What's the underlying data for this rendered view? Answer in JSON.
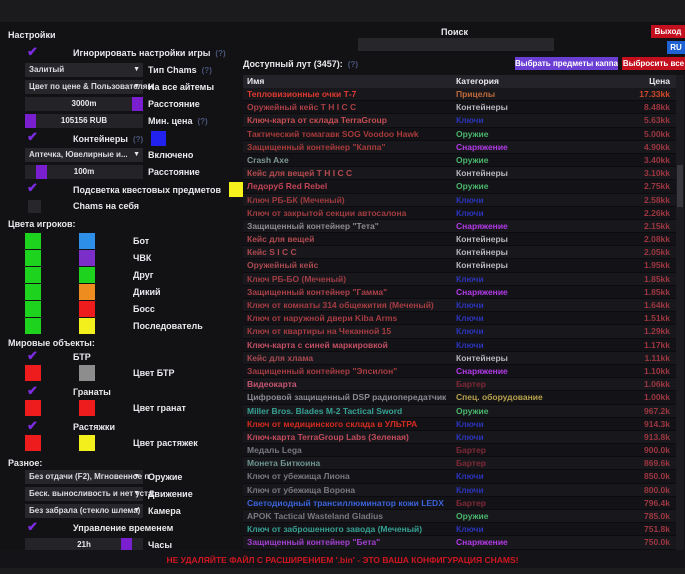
{
  "topbar": {
    "search_label": "Поиск",
    "search_value": "",
    "exit_label": "Выход",
    "language_label": "RU"
  },
  "settings_panel": {
    "title": "Настройки",
    "accent_color": "#7a1fd0",
    "ignore_game_settings": {
      "label": "Игнорировать настройки игры",
      "help": "(?)",
      "checked": true
    },
    "chams_type": {
      "value": "Залитый",
      "label": "Тип Chams",
      "help": "(?)"
    },
    "items_mode": {
      "value": "Цвет по цене & Пользователям",
      "label": "На все айтемы"
    },
    "items_distance": {
      "value": "3000m",
      "label": "Расстояние",
      "fraction": 1
    },
    "min_price": {
      "value": "105156 RUB",
      "label": "Мин. цена",
      "help": "(?)",
      "fraction": 0
    },
    "containers": {
      "label": "Контейнеры",
      "help": "(?)",
      "checked": true,
      "color": "#2222ee"
    },
    "containers_filter": {
      "value": "Аптечка, Ювелирные и...",
      "label": "Включено"
    },
    "containers_distance": {
      "value": "100m",
      "label": "Расстояние",
      "fraction": 0.1
    },
    "quest_items": {
      "label": "Подсветка квестовых предметов",
      "checked": true,
      "color": "#f6f11c"
    },
    "chams_self": {
      "label": "Chams на себя",
      "checked": false
    },
    "player_colors": {
      "title": "Цвета игроков:",
      "rows": [
        {
          "label": "Бот",
          "visible_color": "#1ed31e",
          "target_color": "#2d8fe8"
        },
        {
          "label": "ЧВК",
          "visible_color": "#1ed31e",
          "target_color": "#7b2fc8"
        },
        {
          "label": "Друг",
          "visible_color": "#1ed31e",
          "target_color": "#1ed31e"
        },
        {
          "label": "Дикий",
          "visible_color": "#1ed31e",
          "target_color": "#ef8c1f"
        },
        {
          "label": "Босс",
          "visible_color": "#1ed31e",
          "target_color": "#ee1c1c"
        },
        {
          "label": "Последователь",
          "visible_color": "#1ed31e",
          "target_color": "#f2ef1d"
        }
      ]
    },
    "world_objects": {
      "title": "Мировые объекты:",
      "btr": {
        "label": "БТР",
        "checked": true
      },
      "btr_color": {
        "label": "Цвет БТР",
        "visible_color": "#ee1c1c",
        "target_color": "#8d8d8d"
      },
      "grenades": {
        "label": "Гранаты",
        "checked": true
      },
      "grenades_color": {
        "label": "Цвет гранат",
        "visible_color": "#ee1c1c",
        "target_color": "#ee1c1c"
      },
      "tripwires": {
        "label": "Растяжки",
        "checked": true
      },
      "tripwires_color": {
        "label": "Цвет растяжек",
        "visible_color": "#ee1c1c",
        "target_color": "#f2ef1d"
      }
    },
    "misc": {
      "title": "Разное:",
      "weapon": {
        "value": "Без отдачи (F2), Мгновенное п",
        "label": "Оружие"
      },
      "movement": {
        "value": "Беск. выносливость и нет уста:",
        "label": "Движение"
      },
      "camera": {
        "value": "Без забрала (стекло шлема)",
        "label": "Камера"
      },
      "time_control": {
        "label": "Управление временем",
        "checked": true
      },
      "hours": {
        "value": "21h",
        "label": "Часы",
        "fraction": 0.9
      }
    }
  },
  "loot_panel": {
    "title": "Доступный лут (3457):",
    "help": "(?)",
    "select_kappa_label": "Выбрать предметы каппа",
    "drop_all_label": "Выбросить все",
    "columns": {
      "name": "Имя",
      "category": "Категория",
      "price": "Цена"
    },
    "category_colors": {
      "Прицелы": "#c06a3a",
      "Контейнеры": "#b6b6bd",
      "Ключи": "#2a34b8",
      "Оружие": "#49b46c",
      "Снаряжение": "#b23ae6",
      "Бартер": "#7e2836",
      "Спец. оборудование": "#b7a14e"
    },
    "rows": [
      {
        "name": "Тепловизионные очки Т-7",
        "name_color": "#e03a30",
        "category": "Прицелы",
        "price": "17.33kk",
        "price_color": "#cf482a"
      },
      {
        "name": "Оружейный кейс T H I C C",
        "name_color": "#aa3f46",
        "category": "Контейнеры",
        "price": "8.48kk"
      },
      {
        "name": "Ключ-карта от склада TerraGroup",
        "name_color": "#c44d52",
        "category": "Ключи",
        "price": "5.63kk"
      },
      {
        "name": "Тактический томагавк SOG Voodoo Hawk",
        "name_color": "#a83a3a",
        "category": "Оружие",
        "price": "5.00kk"
      },
      {
        "name": "Защищенный контейнер \"Каппа\"",
        "name_color": "#a83a3a",
        "category": "Снаряжение",
        "price": "4.90kk"
      },
      {
        "name": "Crash Axe",
        "name_color": "#7e9693",
        "category": "Оружие",
        "price": "3.40kk"
      },
      {
        "name": "Кейс для вещей T H I C C",
        "name_color": "#b64a4e",
        "category": "Контейнеры",
        "price": "3.10kk"
      },
      {
        "name": "Ледоруб Red Rebel",
        "name_color": "#c04455",
        "category": "Оружие",
        "price": "2.75kk"
      },
      {
        "name": "Ключ РБ-БК (Меченый)",
        "name_color": "#9e3a3e",
        "category": "Ключи",
        "price": "2.58kk"
      },
      {
        "name": "Ключ от закрытой секции автосалона",
        "name_color": "#a03c40",
        "category": "Ключи",
        "price": "2.26kk"
      },
      {
        "name": "Защищенный контейнер \"Тета\"",
        "name_color": "#8f8a90",
        "category": "Снаряжение",
        "price": "2.15kk"
      },
      {
        "name": "Кейс для вещей",
        "name_color": "#b04a50",
        "category": "Контейнеры",
        "price": "2.08kk"
      },
      {
        "name": "Кейс S I C C",
        "name_color": "#b04a50",
        "category": "Контейнеры",
        "price": "2.05kk"
      },
      {
        "name": "Оружейный кейс",
        "name_color": "#a84a50",
        "category": "Контейнеры",
        "price": "1.95kk"
      },
      {
        "name": "Ключ РБ-БО (Меченый)",
        "name_color": "#a03c44",
        "category": "Ключи",
        "price": "1.85kk"
      },
      {
        "name": "Защищенный контейнер \"Гамма\"",
        "name_color": "#ab4048",
        "category": "Снаряжение",
        "price": "1.85kk"
      },
      {
        "name": "Ключ от комнаты 314 общежития (Меченый)",
        "name_color": "#a53c42",
        "category": "Ключи",
        "price": "1.64kk"
      },
      {
        "name": "Ключ от наружной двери Kiba Arms",
        "name_color": "#a53c42",
        "category": "Ключи",
        "price": "1.51kk"
      },
      {
        "name": "Ключ от квартиры на Чеканной 15",
        "name_color": "#a53c42",
        "category": "Ключи",
        "price": "1.29kk"
      },
      {
        "name": "Ключ-карта с синей маркировкой",
        "name_color": "#c04f62",
        "category": "Ключи",
        "price": "1.17kk"
      },
      {
        "name": "Кейс для хлама",
        "name_color": "#a84a50",
        "category": "Контейнеры",
        "price": "1.11kk"
      },
      {
        "name": "Защищенный контейнер \"Эпсилон\"",
        "name_color": "#a53c42",
        "category": "Снаряжение",
        "price": "1.10kk"
      },
      {
        "name": "Видеокарта",
        "name_color": "#c45570",
        "category": "Бартер",
        "price": "1.06kk"
      },
      {
        "name": "Цифровой защищенный DSP радиопередатчик",
        "name_color": "#8a8a94",
        "category": "Спец. оборудование",
        "price": "1.00kk"
      },
      {
        "name": "Miller Bros. Blades M-2 Tactical Sword",
        "name_color": "#36a193",
        "category": "Оружие",
        "price": "967.2k"
      },
      {
        "name": "Ключ от медицинского склада в УЛЬТРА",
        "name_color": "#d42b20",
        "category": "Ключи",
        "price": "914.3k"
      },
      {
        "name": "Ключ-карта TerraGroup Labs (Зеленая)",
        "name_color": "#c24b5c",
        "category": "Ключи",
        "price": "913.8k"
      },
      {
        "name": "Медаль Lega",
        "name_color": "#787882",
        "category": "Бартер",
        "price": "900.0k"
      },
      {
        "name": "Монета Биткоина",
        "name_color": "#6d948f",
        "category": "Бартер",
        "price": "869.6k"
      },
      {
        "name": "Ключ от убежища Лиона",
        "name_color": "#787882",
        "category": "Ключи",
        "price": "850.0k"
      },
      {
        "name": "Ключ от убежища Ворона",
        "name_color": "#787882",
        "category": "Ключи",
        "price": "800.0k"
      },
      {
        "name": "Светодиодный трансиллюминатор кожи LEDX",
        "name_color": "#3b62d8",
        "category": "Бартер",
        "price": "796.4k"
      },
      {
        "name": "APOK Tactical Wasteland Gladius",
        "name_color": "#787882",
        "category": "Оружие",
        "price": "785.0k"
      },
      {
        "name": "Ключ от заброшенного завода (Меченый)",
        "name_color": "#36a193",
        "category": "Ключи",
        "price": "751.8k"
      },
      {
        "name": "Защищенный контейнер \"Бета\"",
        "name_color": "#a33fd0",
        "category": "Снаряжение",
        "price": "750.0k"
      }
    ]
  },
  "footer": {
    "warning": "НЕ УДАЛЯЙТЕ ФАЙЛ С РАСШИРЕНИЕМ '.bin' - ЭТО ВАША КОНФИГУРАЦИЯ CHAMS!"
  }
}
